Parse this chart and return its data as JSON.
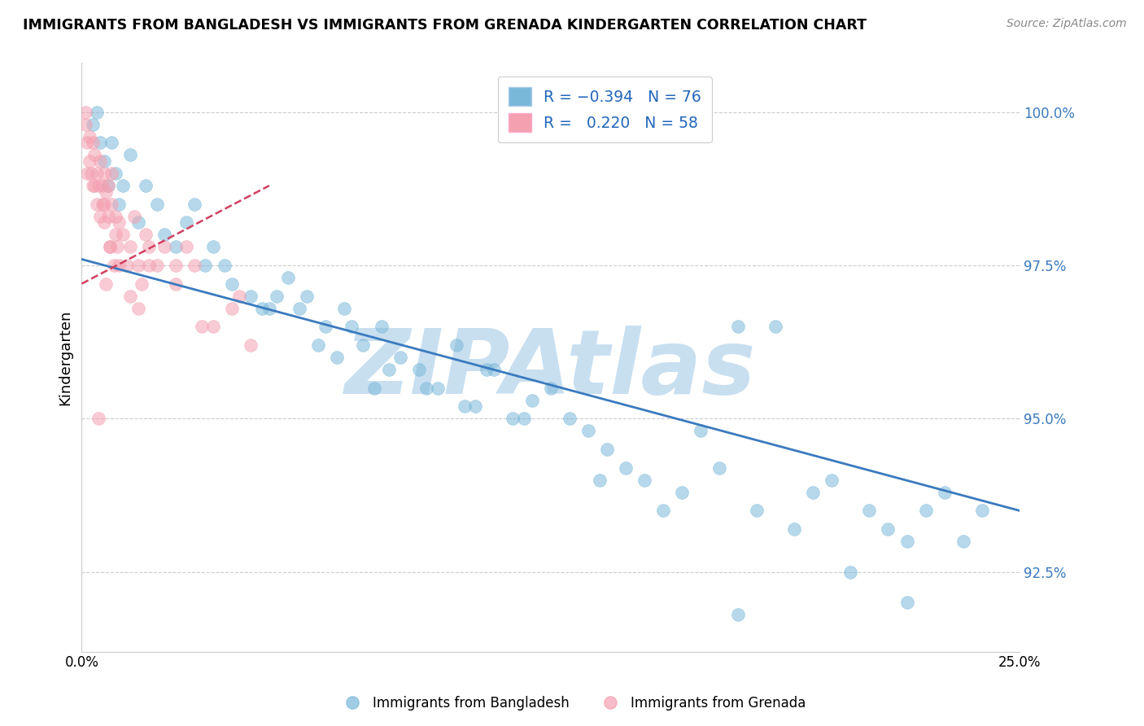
{
  "title": "IMMIGRANTS FROM BANGLADESH VS IMMIGRANTS FROM GRENADA KINDERGARTEN CORRELATION CHART",
  "source": "Source: ZipAtlas.com",
  "ylabel": "Kindergarten",
  "xlim": [
    0.0,
    25.0
  ],
  "ylim": [
    91.2,
    100.8
  ],
  "yticks": [
    92.5,
    95.0,
    97.5,
    100.0
  ],
  "ytick_labels": [
    "92.5%",
    "95.0%",
    "97.5%",
    "100.0%"
  ],
  "legend_label_blue": "Immigrants from Bangladesh",
  "legend_label_pink": "Immigrants from Grenada",
  "blue_color": "#7ab8d9",
  "pink_color": "#f4a0b0",
  "blue_line_color": "#3a7abf",
  "pink_line_color": "#d04060",
  "watermark": "ZIPAtlas",
  "watermark_color": "#c8dff0",
  "blue_trend_x0": 0.0,
  "blue_trend_y0": 97.6,
  "blue_trend_x1": 25.0,
  "blue_trend_y1": 93.5,
  "pink_trend_x0": 0.0,
  "pink_trend_y0": 97.2,
  "pink_trend_x1": 5.0,
  "pink_trend_y1": 98.8,
  "blue_x": [
    0.3,
    0.4,
    0.5,
    0.6,
    0.7,
    0.8,
    0.9,
    1.0,
    1.1,
    1.3,
    1.5,
    1.7,
    2.0,
    2.2,
    2.5,
    2.8,
    3.0,
    3.3,
    3.5,
    4.0,
    4.5,
    5.0,
    5.5,
    6.0,
    6.5,
    7.0,
    7.5,
    8.0,
    8.5,
    9.0,
    9.5,
    10.0,
    10.5,
    11.0,
    11.5,
    12.0,
    12.5,
    13.0,
    13.5,
    14.0,
    14.5,
    15.0,
    16.0,
    17.0,
    17.5,
    18.0,
    19.0,
    20.0,
    21.0,
    22.0,
    23.0,
    24.0,
    5.2,
    5.8,
    6.3,
    7.2,
    8.2,
    9.2,
    10.2,
    10.8,
    11.8,
    13.8,
    15.5,
    16.5,
    18.5,
    19.5,
    21.5,
    22.5,
    23.5,
    17.5,
    20.5,
    22.0,
    3.8,
    4.8,
    6.8,
    7.8
  ],
  "blue_y": [
    99.8,
    100.0,
    99.5,
    99.2,
    98.8,
    99.5,
    99.0,
    98.5,
    98.8,
    99.3,
    98.2,
    98.8,
    98.5,
    98.0,
    97.8,
    98.2,
    98.5,
    97.5,
    97.8,
    97.2,
    97.0,
    96.8,
    97.3,
    97.0,
    96.5,
    96.8,
    96.2,
    96.5,
    96.0,
    95.8,
    95.5,
    96.2,
    95.2,
    95.8,
    95.0,
    95.3,
    95.5,
    95.0,
    94.8,
    94.5,
    94.2,
    94.0,
    93.8,
    94.2,
    96.5,
    93.5,
    93.2,
    94.0,
    93.5,
    93.0,
    93.8,
    93.5,
    97.0,
    96.8,
    96.2,
    96.5,
    95.8,
    95.5,
    95.2,
    95.8,
    95.0,
    94.0,
    93.5,
    94.8,
    96.5,
    93.8,
    93.2,
    93.5,
    93.0,
    91.8,
    92.5,
    92.0,
    97.5,
    96.8,
    96.0,
    95.5
  ],
  "pink_x": [
    0.1,
    0.1,
    0.15,
    0.2,
    0.2,
    0.25,
    0.3,
    0.3,
    0.35,
    0.4,
    0.4,
    0.45,
    0.5,
    0.5,
    0.55,
    0.6,
    0.6,
    0.65,
    0.7,
    0.7,
    0.75,
    0.8,
    0.8,
    0.85,
    0.9,
    0.95,
    1.0,
    1.0,
    1.1,
    1.2,
    1.3,
    1.4,
    1.5,
    1.6,
    1.7,
    1.8,
    2.0,
    2.2,
    2.5,
    2.8,
    3.0,
    3.5,
    4.0,
    4.5,
    0.15,
    0.35,
    0.55,
    0.75,
    0.9,
    1.5,
    2.5,
    3.2,
    1.3,
    0.6,
    1.8,
    4.2,
    0.45,
    0.65
  ],
  "pink_y": [
    99.8,
    100.0,
    99.5,
    99.2,
    99.6,
    99.0,
    99.5,
    98.8,
    99.3,
    99.0,
    98.5,
    98.8,
    99.2,
    98.3,
    98.8,
    99.0,
    98.5,
    98.7,
    98.3,
    98.8,
    97.8,
    98.5,
    99.0,
    97.5,
    98.0,
    97.8,
    98.2,
    97.5,
    98.0,
    97.5,
    97.8,
    98.3,
    97.5,
    97.2,
    98.0,
    97.8,
    97.5,
    97.8,
    97.5,
    97.8,
    97.5,
    96.5,
    96.8,
    96.2,
    99.0,
    98.8,
    98.5,
    97.8,
    98.3,
    96.8,
    97.2,
    96.5,
    97.0,
    98.2,
    97.5,
    97.0,
    95.0,
    97.2
  ]
}
